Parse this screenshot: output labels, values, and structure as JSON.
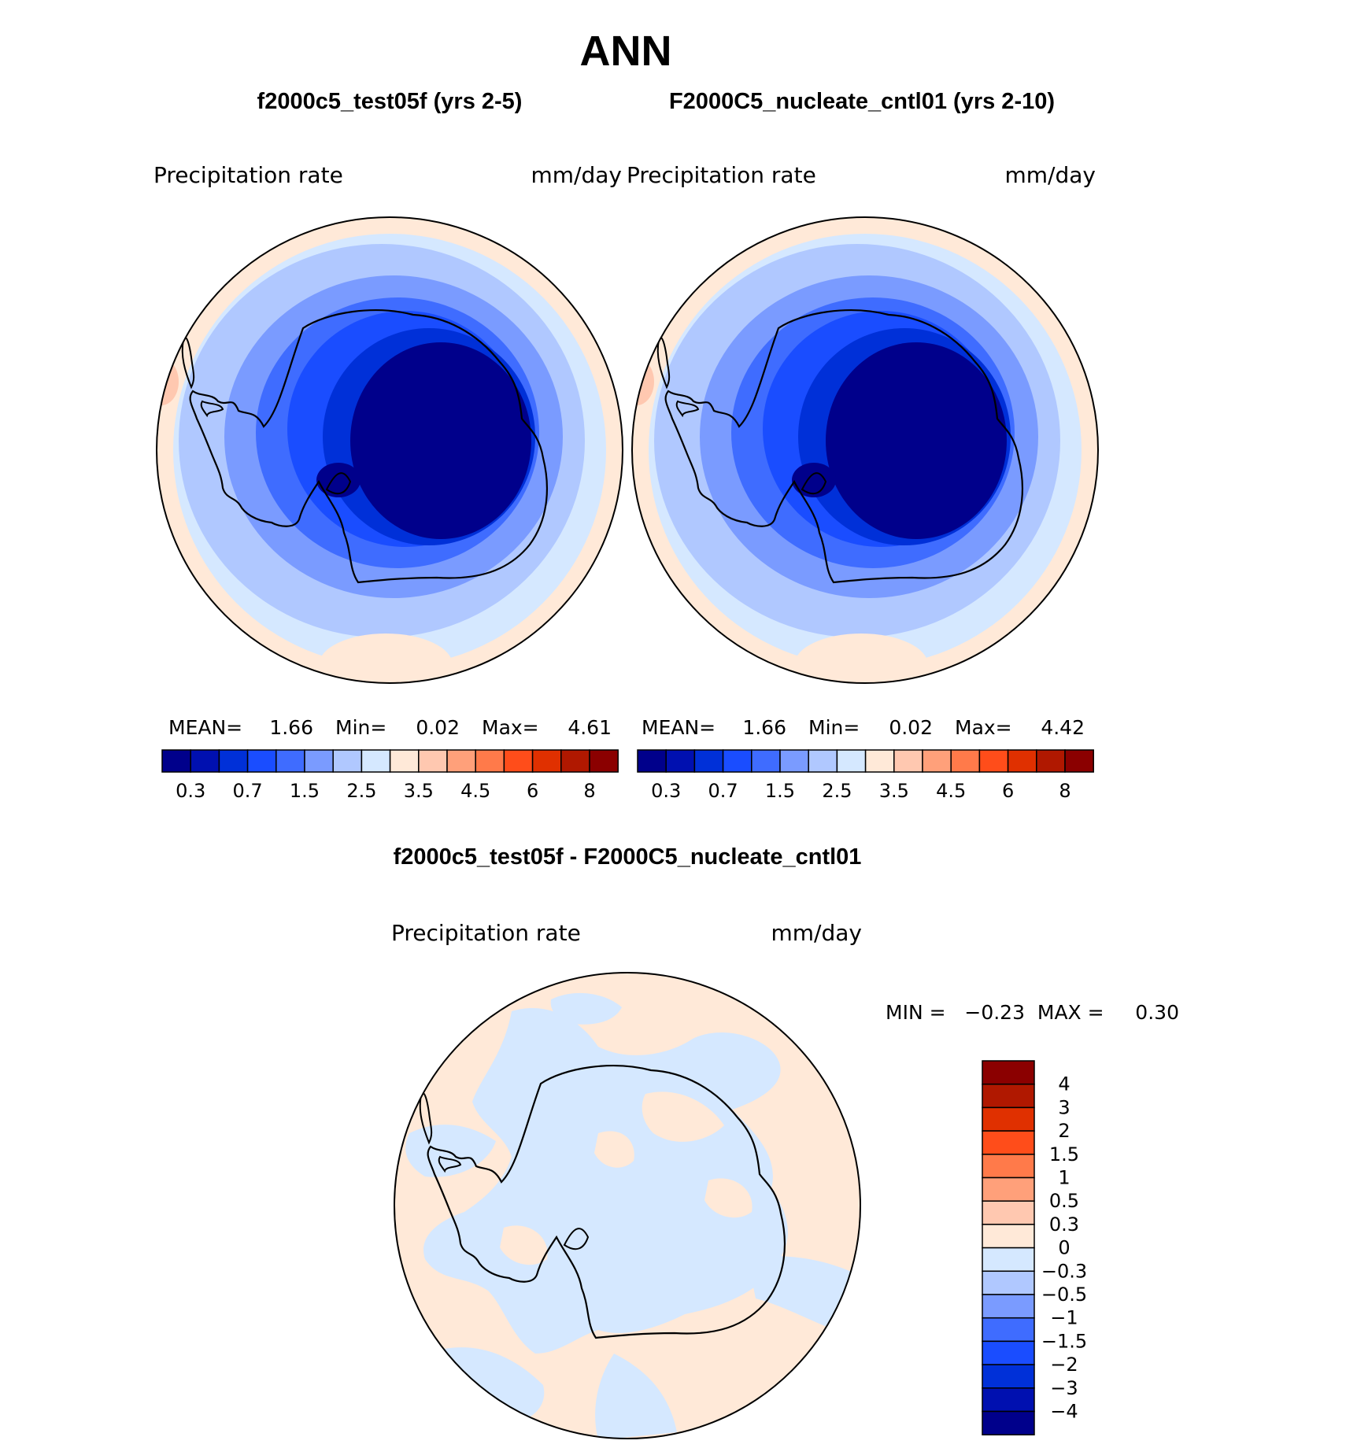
{
  "page": {
    "title": "ANN",
    "subtitle": "f2000c5_test05f - F2000C5_nucleate_cntl01"
  },
  "colors": {
    "abs_scale": [
      "#00008b",
      "#0010b0",
      "#0030d8",
      "#1a4dff",
      "#3f6cff",
      "#7a9bff",
      "#b0c8ff",
      "#d5e8ff",
      "#ffe9d8",
      "#ffc8b0",
      "#ffa07a",
      "#ff7a4a",
      "#ff4d1a",
      "#e03000",
      "#b01800",
      "#8b0000"
    ],
    "diff_scale": [
      "#00008b",
      "#0010b0",
      "#0030d8",
      "#1a4dff",
      "#3f6cff",
      "#7a9bff",
      "#b0c8ff",
      "#d5e8ff",
      "#ffe9d8",
      "#ffc8b0",
      "#ffa07a",
      "#ff7a4a",
      "#ff4d1a",
      "#e03000",
      "#b01800",
      "#8b0000"
    ]
  },
  "maps": [
    {
      "case": "f2000c5_test05f (yrs 2-5)",
      "field": "Precipitation  rate",
      "units": "mm/day",
      "stats": {
        "mean_label": "MEAN=",
        "mean": "1.66",
        "min_label": "Min=",
        "min": "0.02",
        "max_label": "Max=",
        "max": "4.61"
      },
      "levels": [
        "0.3",
        "0.7",
        "1.5",
        "2.5",
        "3.5",
        "4.5",
        "6",
        "8"
      ]
    },
    {
      "case": "F2000C5_nucleate_cntl01 (yrs 2-10)",
      "field": "Precipitation  rate",
      "units": "mm/day",
      "stats": {
        "mean_label": "MEAN=",
        "mean": "1.66",
        "min_label": "Min=",
        "min": "0.02",
        "max_label": "Max=",
        "max": "4.42"
      },
      "levels": [
        "0.3",
        "0.7",
        "1.5",
        "2.5",
        "3.5",
        "4.5",
        "6",
        "8"
      ]
    }
  ],
  "diff_map": {
    "field": "Precipitation  rate",
    "units": "mm/day",
    "stats_label": "MIN =   −0.23  MAX =     0.30",
    "levels": [
      "4",
      "3",
      "2",
      "1.5",
      "1",
      "0.5",
      "0.3",
      "0",
      "−0.3",
      "−0.5",
      "−1",
      "−1.5",
      "−2",
      "−3",
      "−4"
    ]
  }
}
